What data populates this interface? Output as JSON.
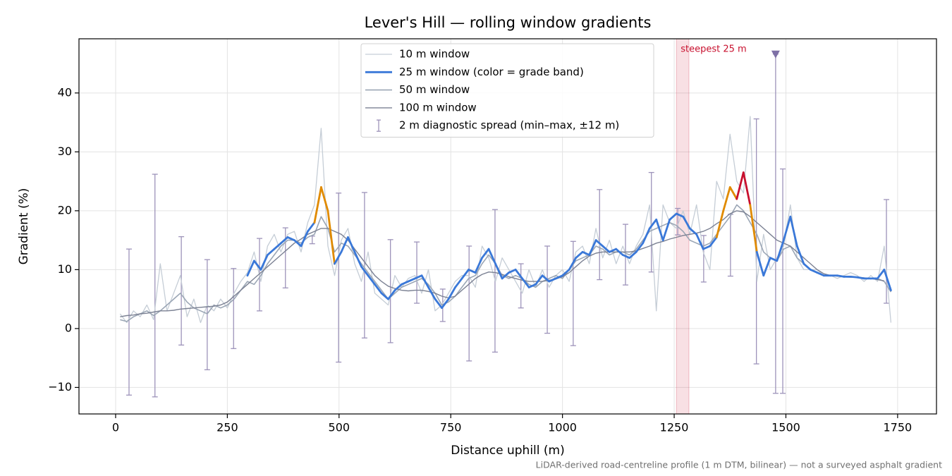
{
  "chart_data": {
    "type": "line",
    "title": "Lever's Hill — rolling window gradients",
    "x_label": "Distance uphill (m)",
    "y_label": "Gradient (%)",
    "note": "LiDAR-derived road-centreline profile (1 m DTM, bilinear) — not a surveyed asphalt gradient",
    "xlim": [
      -82,
      1837
    ],
    "ylim": [
      -14.5,
      49.2
    ],
    "xticks": [
      0,
      250,
      500,
      750,
      1000,
      1250,
      1500,
      1750
    ],
    "yticks": [
      {
        "value": -10,
        "label": "−10"
      },
      0,
      10,
      20,
      30,
      40
    ],
    "grid": true,
    "legend": "top-center",
    "x": [
      10,
      25,
      40,
      55,
      70,
      85,
      100,
      115,
      130,
      145,
      160,
      175,
      190,
      205,
      220,
      235,
      250,
      265,
      280,
      295,
      310,
      325,
      340,
      355,
      370,
      385,
      400,
      415,
      430,
      445,
      460,
      475,
      490,
      505,
      520,
      535,
      550,
      565,
      580,
      595,
      610,
      625,
      640,
      655,
      670,
      685,
      700,
      715,
      730,
      745,
      760,
      775,
      790,
      805,
      820,
      835,
      850,
      865,
      880,
      895,
      910,
      925,
      940,
      955,
      970,
      985,
      1000,
      1015,
      1030,
      1045,
      1060,
      1075,
      1090,
      1105,
      1120,
      1135,
      1150,
      1165,
      1180,
      1195,
      1210,
      1225,
      1240,
      1255,
      1270,
      1285,
      1300,
      1315,
      1330,
      1345,
      1360,
      1375,
      1390,
      1405,
      1420,
      1435,
      1450,
      1465,
      1480,
      1495,
      1510,
      1525,
      1540,
      1555,
      1570,
      1585,
      1600,
      1615,
      1630,
      1645,
      1660,
      1675,
      1690,
      1705,
      1720,
      1735
    ],
    "series": [
      {
        "name": "10 m window",
        "color": "#c5cdd6",
        "width": 1.3,
        "values": [
          2.5,
          1,
          3,
          2,
          4,
          1.5,
          11,
          3,
          6,
          9,
          2,
          5,
          1,
          4,
          3,
          5,
          3.5,
          6,
          8,
          9.5,
          13,
          8,
          14,
          16,
          13,
          16,
          16.5,
          13,
          18,
          21,
          34,
          14,
          9,
          15,
          17,
          11,
          8,
          13,
          6,
          5,
          4,
          9,
          7,
          8.5,
          9,
          6,
          10,
          3,
          4,
          6,
          8,
          9,
          9,
          7,
          14,
          12,
          8,
          12,
          10,
          8,
          6,
          10,
          7,
          10,
          7,
          9,
          10,
          8,
          13,
          14,
          11,
          17,
          12,
          15,
          11,
          14,
          11,
          14,
          16,
          21,
          3,
          21,
          18,
          17,
          20,
          16,
          21,
          13,
          10,
          25,
          22,
          33,
          25,
          23,
          36,
          8,
          16,
          10,
          12,
          14,
          21,
          12,
          10,
          10,
          10,
          9,
          9,
          8.5,
          9,
          9.5,
          9,
          8,
          9,
          8,
          14,
          1
        ]
      },
      {
        "name": "25 m window (color = grade band)",
        "color": "#3a78d8",
        "width": 2.8,
        "bands": [
          {
            "from": 20,
            "color": "#e08a00"
          },
          {
            "from": 25,
            "color": "#c8102e"
          }
        ],
        "values": [
          null,
          null,
          null,
          null,
          null,
          null,
          null,
          null,
          null,
          null,
          null,
          null,
          null,
          null,
          null,
          null,
          null,
          null,
          null,
          9,
          11.5,
          10,
          12.5,
          13.5,
          14.5,
          15.5,
          15,
          14,
          16.5,
          18,
          24,
          20,
          11,
          13,
          15.5,
          13,
          10.5,
          9,
          7.5,
          6,
          5,
          6.5,
          7.5,
          8,
          8.5,
          9,
          7,
          5,
          3.5,
          5,
          7,
          8.5,
          10,
          9.5,
          12,
          13.5,
          11,
          8.5,
          9.5,
          10,
          8.5,
          7,
          7.5,
          9,
          8,
          8.5,
          9,
          10,
          12,
          13,
          12.5,
          15,
          14,
          13,
          13.5,
          12.5,
          12,
          13,
          14.5,
          17,
          18.5,
          15,
          18.5,
          19.5,
          19,
          17,
          16,
          13.5,
          14,
          15.5,
          20,
          24,
          22,
          26.5,
          21,
          13,
          9,
          12,
          11.5,
          15,
          19,
          14,
          11,
          10,
          9.5,
          9,
          9,
          9,
          8.8,
          8.8,
          8.7,
          8.5,
          8.5,
          8.5,
          10,
          6.5
        ]
      },
      {
        "name": "50 m window",
        "color": "#9ba6b5",
        "width": 1.6,
        "values": [
          1.5,
          1.2,
          2,
          2.5,
          3,
          2.2,
          3,
          4,
          5,
          6,
          4.5,
          3.5,
          3,
          2.5,
          4,
          3.5,
          4,
          5,
          6.5,
          8,
          7.5,
          9,
          11,
          12.5,
          14,
          15,
          15,
          14.5,
          15.5,
          16,
          19,
          17,
          13,
          14.5,
          14,
          12.5,
          11,
          9.5,
          8,
          6.5,
          5,
          6,
          7,
          7.5,
          8,
          8.5,
          7.5,
          6,
          4,
          4.5,
          5.5,
          7,
          8.5,
          9,
          11,
          12.5,
          11,
          9,
          8.5,
          9,
          8.5,
          7.5,
          7,
          8,
          8.5,
          9,
          8.5,
          10,
          11.5,
          12,
          12.5,
          14,
          13.5,
          12.5,
          13,
          13,
          12.5,
          13.5,
          15,
          16.5,
          17,
          17.5,
          18,
          17.5,
          16.5,
          15,
          14.5,
          14,
          14.5,
          16,
          17.5,
          19,
          21,
          20,
          18,
          16,
          13,
          12,
          11.5,
          13.5,
          14,
          12,
          11,
          10,
          9.5,
          9,
          9,
          9,
          8.8,
          8.7,
          8.7,
          8.6,
          8.5,
          8.5,
          8,
          6.2
        ]
      },
      {
        "name": "100 m window",
        "color": "#7b8193",
        "width": 1.4,
        "values": [
          2,
          2.2,
          2.3,
          2.5,
          2.6,
          2.8,
          3,
          3,
          3.1,
          3.3,
          3.4,
          3.5,
          3.6,
          3.7,
          3.8,
          4,
          4.5,
          5.5,
          6.5,
          7.5,
          8.5,
          9.5,
          10.5,
          11.5,
          12.5,
          13.5,
          14.5,
          15.2,
          16,
          16.5,
          17,
          17,
          16.5,
          16,
          15,
          13.5,
          12,
          10.5,
          9,
          8,
          7.2,
          6.8,
          6.5,
          6.4,
          6.5,
          6.5,
          6.3,
          6,
          5.5,
          5.2,
          5.5,
          6.5,
          7.5,
          8.5,
          9.2,
          9.6,
          9.5,
          9.2,
          8.8,
          8.5,
          8.2,
          8,
          8,
          8,
          8.2,
          8.4,
          8.8,
          9.5,
          10.5,
          11.5,
          12.3,
          12.8,
          13,
          13,
          13,
          13,
          13,
          13.2,
          13.6,
          14,
          14.5,
          14.8,
          15.2,
          15.5,
          15.8,
          16,
          16.2,
          16.5,
          17,
          17.8,
          18.5,
          19.5,
          20,
          19.8,
          19,
          18,
          17,
          16,
          15,
          14.5,
          14,
          13,
          12,
          11,
          10,
          9.3,
          9,
          8.9,
          8.8,
          8.8,
          8.7,
          8.6,
          8.5,
          8.3,
          8.1,
          null
        ]
      }
    ],
    "spread": {
      "name": "2 m diagnostic spread (min–max, ±12 m)",
      "color": "#9d93ba",
      "x": [
        30,
        88,
        147,
        205,
        264,
        322,
        380,
        440,
        499,
        557,
        615,
        674,
        732,
        791,
        849,
        907,
        966,
        1024,
        1083,
        1141,
        1199,
        1258,
        1316,
        1376,
        1434,
        1477,
        1493,
        1725
      ],
      "low": [
        -11.3,
        -11.6,
        -2.8,
        -7,
        -3.4,
        3,
        6.9,
        14.4,
        -5.7,
        -1.6,
        -2.4,
        4.3,
        1.2,
        -5.5,
        -4,
        3.5,
        -0.8,
        -2.9,
        8.3,
        7.4,
        9.6,
        15.9,
        7.9,
        8.9,
        -6,
        -11,
        -11,
        4.3
      ],
      "high": [
        13.5,
        26.2,
        15.6,
        11.7,
        10.2,
        15.3,
        17.1,
        15.7,
        23,
        23.1,
        15.1,
        14.7,
        6.7,
        14,
        20.2,
        11,
        14,
        14.8,
        23.6,
        17.7,
        26.5,
        20.4,
        15.8,
        19.4,
        35.6,
        46.6,
        27.1,
        21.9
      ],
      "peak_marker": 46.6
    },
    "annotation": {
      "text": "steepest 25 m",
      "span": [
        1255,
        1283
      ],
      "color": "#c8102e"
    }
  }
}
